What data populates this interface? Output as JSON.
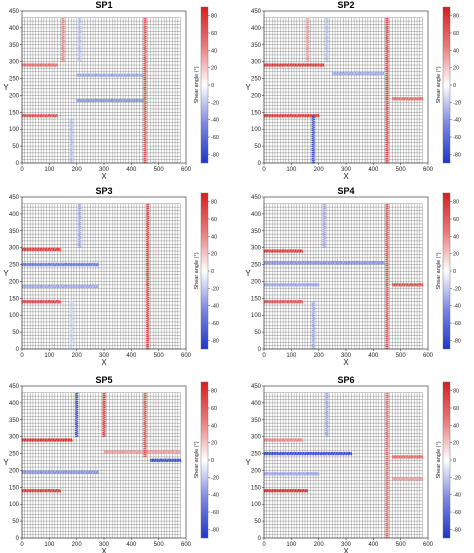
{
  "chart_data": [
    {
      "type": "heatmap",
      "title": "SP1",
      "xlabel": "X",
      "ylabel": "Y",
      "xlim": [
        0,
        600
      ],
      "ylim": [
        0,
        450
      ],
      "xticks": [
        0,
        100,
        200,
        300,
        400,
        500,
        600
      ],
      "yticks": [
        0,
        50,
        100,
        150,
        200,
        250,
        300,
        350,
        400,
        450
      ],
      "colorbar": {
        "label": "Shear angle (°)",
        "range": [
          -90,
          90
        ],
        "ticks": [
          80,
          60,
          40,
          20,
          0,
          -20,
          -40,
          -60,
          -80
        ]
      },
      "bands": [
        {
          "orient": "h",
          "pos": 290,
          "from": 0,
          "to": 130,
          "angle": 60
        },
        {
          "orient": "h",
          "pos": 140,
          "from": 0,
          "to": 130,
          "angle": 70
        },
        {
          "orient": "h",
          "pos": 260,
          "from": 200,
          "to": 440,
          "angle": -40
        },
        {
          "orient": "h",
          "pos": 185,
          "from": 200,
          "to": 440,
          "angle": -50
        },
        {
          "orient": "v",
          "pos": 150,
          "from": 300,
          "to": 430,
          "angle": 50
        },
        {
          "orient": "v",
          "pos": 210,
          "from": 300,
          "to": 430,
          "angle": -30
        },
        {
          "orient": "v",
          "pos": 450,
          "from": 0,
          "to": 430,
          "angle": 70
        },
        {
          "orient": "v",
          "pos": 180,
          "from": 0,
          "to": 130,
          "angle": -30
        }
      ]
    },
    {
      "type": "heatmap",
      "title": "SP2",
      "xlabel": "X",
      "ylabel": "Y",
      "xlim": [
        0,
        600
      ],
      "ylim": [
        0,
        450
      ],
      "xticks": [
        0,
        100,
        200,
        300,
        400,
        500,
        600
      ],
      "yticks": [
        0,
        50,
        100,
        150,
        200,
        250,
        300,
        350,
        400,
        450
      ],
      "colorbar": {
        "label": "Shear angle (°)",
        "range": [
          -90,
          90
        ],
        "ticks": [
          80,
          60,
          40,
          20,
          0,
          -20,
          -40,
          -60,
          -80
        ]
      },
      "bands": [
        {
          "orient": "h",
          "pos": 290,
          "from": 0,
          "to": 220,
          "angle": 80
        },
        {
          "orient": "h",
          "pos": 140,
          "from": 0,
          "to": 200,
          "angle": 80
        },
        {
          "orient": "h",
          "pos": 265,
          "from": 250,
          "to": 440,
          "angle": -40
        },
        {
          "orient": "h",
          "pos": 190,
          "from": 470,
          "to": 580,
          "angle": 60
        },
        {
          "orient": "v",
          "pos": 180,
          "from": 0,
          "to": 140,
          "angle": -80
        },
        {
          "orient": "v",
          "pos": 450,
          "from": 0,
          "to": 430,
          "angle": 75
        },
        {
          "orient": "v",
          "pos": 160,
          "from": 300,
          "to": 430,
          "angle": 40
        },
        {
          "orient": "v",
          "pos": 230,
          "from": 300,
          "to": 430,
          "angle": -30
        }
      ]
    },
    {
      "type": "heatmap",
      "title": "SP3",
      "xlabel": "X",
      "ylabel": "Y",
      "xlim": [
        0,
        600
      ],
      "ylim": [
        0,
        450
      ],
      "xticks": [
        0,
        100,
        200,
        300,
        400,
        500,
        600
      ],
      "yticks": [
        0,
        50,
        100,
        150,
        200,
        250,
        300,
        350,
        400,
        450
      ],
      "colorbar": {
        "label": "Shear angle (°)",
        "range": [
          -90,
          90
        ],
        "ticks": [
          80,
          60,
          40,
          20,
          0,
          -20,
          -40,
          -60,
          -80
        ]
      },
      "bands": [
        {
          "orient": "h",
          "pos": 295,
          "from": 0,
          "to": 140,
          "angle": 80
        },
        {
          "orient": "h",
          "pos": 250,
          "from": 0,
          "to": 280,
          "angle": -60
        },
        {
          "orient": "h",
          "pos": 140,
          "from": 0,
          "to": 140,
          "angle": 75
        },
        {
          "orient": "h",
          "pos": 185,
          "from": 0,
          "to": 280,
          "angle": -40
        },
        {
          "orient": "v",
          "pos": 460,
          "from": 0,
          "to": 430,
          "angle": 75
        },
        {
          "orient": "v",
          "pos": 180,
          "from": 0,
          "to": 140,
          "angle": -20
        },
        {
          "orient": "v",
          "pos": 210,
          "from": 300,
          "to": 430,
          "angle": -40
        }
      ]
    },
    {
      "type": "heatmap",
      "title": "SP4",
      "xlabel": "X",
      "ylabel": "Y",
      "xlim": [
        0,
        600
      ],
      "ylim": [
        0,
        450
      ],
      "xticks": [
        0,
        100,
        200,
        300,
        400,
        500,
        600
      ],
      "yticks": [
        0,
        50,
        100,
        150,
        200,
        250,
        300,
        350,
        400,
        450
      ],
      "colorbar": {
        "label": "Shear angle (°)",
        "range": [
          -90,
          90
        ],
        "ticks": [
          80,
          60,
          40,
          20,
          0,
          -20,
          -40,
          -60,
          -80
        ]
      },
      "bands": [
        {
          "orient": "h",
          "pos": 290,
          "from": 0,
          "to": 140,
          "angle": 80
        },
        {
          "orient": "h",
          "pos": 255,
          "from": 0,
          "to": 440,
          "angle": -50
        },
        {
          "orient": "h",
          "pos": 140,
          "from": 0,
          "to": 140,
          "angle": 70
        },
        {
          "orient": "h",
          "pos": 190,
          "from": 0,
          "to": 200,
          "angle": -40
        },
        {
          "orient": "h",
          "pos": 190,
          "from": 470,
          "to": 580,
          "angle": 70
        },
        {
          "orient": "v",
          "pos": 450,
          "from": 0,
          "to": 430,
          "angle": 70
        },
        {
          "orient": "v",
          "pos": 180,
          "from": 0,
          "to": 140,
          "angle": -40
        },
        {
          "orient": "v",
          "pos": 220,
          "from": 300,
          "to": 430,
          "angle": -40
        }
      ]
    },
    {
      "type": "heatmap",
      "title": "SP5",
      "xlabel": "X",
      "ylabel": "Y",
      "xlim": [
        0,
        600
      ],
      "ylim": [
        0,
        450
      ],
      "xticks": [
        0,
        100,
        200,
        300,
        400,
        500,
        600
      ],
      "yticks": [
        0,
        50,
        100,
        150,
        200,
        250,
        300,
        350,
        400,
        450
      ],
      "colorbar": {
        "label": "Shear angle (°)",
        "range": [
          -90,
          90
        ],
        "ticks": [
          80,
          60,
          40,
          20,
          0,
          -20,
          -40,
          -60,
          -80
        ]
      },
      "bands": [
        {
          "orient": "h",
          "pos": 290,
          "from": 0,
          "to": 180,
          "angle": 85
        },
        {
          "orient": "h",
          "pos": 255,
          "from": 300,
          "to": 580,
          "angle": 40
        },
        {
          "orient": "h",
          "pos": 140,
          "from": 0,
          "to": 140,
          "angle": 80
        },
        {
          "orient": "h",
          "pos": 230,
          "from": 470,
          "to": 580,
          "angle": -80
        },
        {
          "orient": "h",
          "pos": 195,
          "from": 0,
          "to": 280,
          "angle": -50
        },
        {
          "orient": "v",
          "pos": 200,
          "from": 300,
          "to": 430,
          "angle": -80
        },
        {
          "orient": "v",
          "pos": 300,
          "from": 300,
          "to": 430,
          "angle": 80
        },
        {
          "orient": "v",
          "pos": 450,
          "from": 240,
          "to": 430,
          "angle": 70
        }
      ]
    },
    {
      "type": "heatmap",
      "title": "SP6",
      "xlabel": "X",
      "ylabel": "Y",
      "xlim": [
        0,
        600
      ],
      "ylim": [
        0,
        450
      ],
      "xticks": [
        0,
        100,
        200,
        300,
        400,
        500,
        600
      ],
      "yticks": [
        0,
        50,
        100,
        150,
        200,
        250,
        300,
        350,
        400,
        450
      ],
      "colorbar": {
        "label": "Shear angle (°)",
        "range": [
          -90,
          90
        ],
        "ticks": [
          80,
          60,
          40,
          20,
          0,
          -20,
          -40,
          -60,
          -80
        ]
      },
      "bands": [
        {
          "orient": "h",
          "pos": 290,
          "from": 0,
          "to": 140,
          "angle": 50
        },
        {
          "orient": "h",
          "pos": 250,
          "from": 0,
          "to": 320,
          "angle": -80
        },
        {
          "orient": "h",
          "pos": 140,
          "from": 0,
          "to": 160,
          "angle": 85
        },
        {
          "orient": "h",
          "pos": 190,
          "from": 0,
          "to": 200,
          "angle": -40
        },
        {
          "orient": "h",
          "pos": 240,
          "from": 470,
          "to": 580,
          "angle": 60
        },
        {
          "orient": "h",
          "pos": 175,
          "from": 470,
          "to": 580,
          "angle": 40
        },
        {
          "orient": "v",
          "pos": 450,
          "from": 0,
          "to": 430,
          "angle": 60
        },
        {
          "orient": "v",
          "pos": 230,
          "from": 300,
          "to": 430,
          "angle": -40
        }
      ]
    }
  ]
}
